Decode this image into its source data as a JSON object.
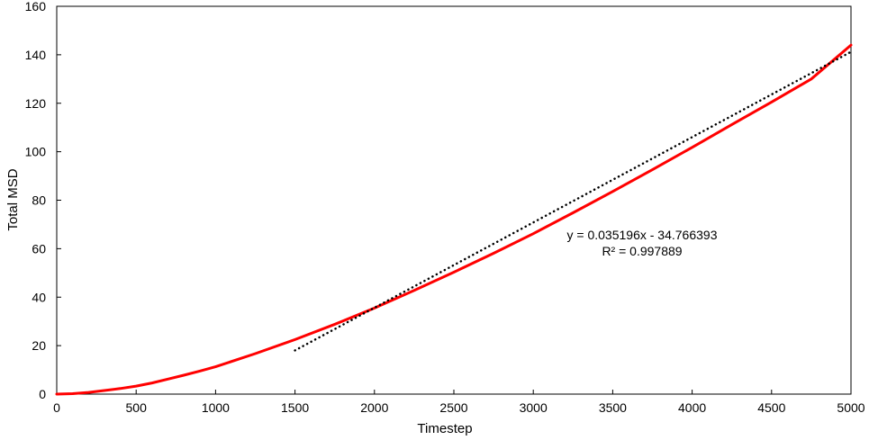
{
  "chart_data": {
    "type": "line",
    "title": "",
    "xlabel": "Timestep",
    "ylabel": "Total MSD",
    "xlim": [
      0,
      5000
    ],
    "ylim": [
      0,
      160
    ],
    "xticks": [
      0,
      500,
      1000,
      1500,
      2000,
      2500,
      3000,
      3500,
      4000,
      4500,
      5000
    ],
    "yticks": [
      0,
      20,
      40,
      60,
      80,
      100,
      120,
      140,
      160
    ],
    "grid": false,
    "legend": "none",
    "series": [
      {
        "type": "line",
        "color": "#ff0000",
        "x": [
          0,
          100,
          200,
          300,
          400,
          500,
          600,
          700,
          800,
          900,
          1000,
          1250,
          1500,
          1750,
          2000,
          2250,
          2500,
          2750,
          3000,
          3250,
          3500,
          3750,
          4000,
          4250,
          4500,
          4750,
          5000
        ],
        "y": [
          0,
          0.2,
          0.7,
          1.5,
          2.3,
          3.3,
          4.6,
          6.2,
          7.8,
          9.5,
          11.3,
          16.7,
          22.5,
          28.8,
          35.5,
          42.8,
          50.3,
          58.1,
          66.2,
          74.8,
          83.6,
          92.6,
          101.8,
          111.2,
          120.5,
          130.0,
          144.0
        ]
      },
      {
        "type": "trendline",
        "color": "#000000",
        "style": "dotted",
        "slope": 0.035196,
        "intercept": -34.766393,
        "x_range": [
          1500,
          5000
        ]
      }
    ],
    "annotation": {
      "equation": "y = 0.035196x - 34.766393",
      "r_squared": "R² = 0.997889"
    }
  }
}
